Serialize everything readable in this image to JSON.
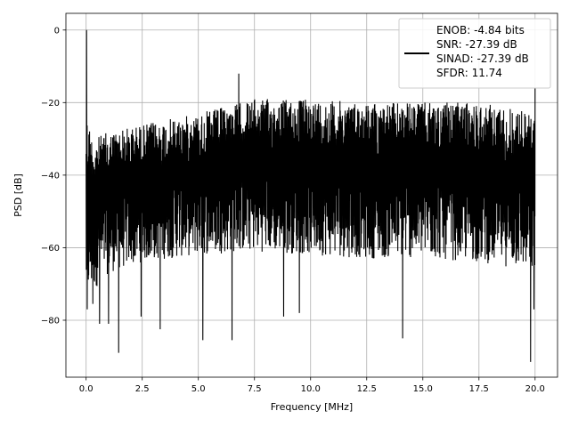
{
  "chart_data": {
    "type": "line",
    "title": "",
    "xlabel": "Frequency [MHz]",
    "ylabel": "PSD [dB]",
    "xlim": [
      -0.9,
      21.0
    ],
    "ylim": [
      -95.7,
      4.6
    ],
    "xticks": [
      0.0,
      2.5,
      5.0,
      7.5,
      10.0,
      12.5,
      15.0,
      17.5,
      20.0
    ],
    "xtick_labels": [
      "0.0",
      "2.5",
      "5.0",
      "7.5",
      "10.0",
      "12.5",
      "15.0",
      "17.5",
      "20.0"
    ],
    "yticks": [
      0,
      -20,
      -40,
      -60,
      -80
    ],
    "ytick_labels": [
      "0",
      "−20",
      "−40",
      "−60",
      "−80"
    ],
    "grid": true,
    "legend_position": "top-right",
    "legend": [
      "ENOB: -4.84 bits",
      "SNR: -27.39 dB",
      "SINAD: -27.39 dB",
      "SFDR: 11.74"
    ],
    "series": [
      {
        "color": "#000000",
        "description": "dense noise floor spectrum from 0 to 20 MHz",
        "upper_envelope": {
          "x": [
            0.0,
            0.3,
            1.0,
            2.5,
            5.0,
            7.5,
            10.0,
            12.5,
            15.0,
            17.5,
            19.5,
            20.0
          ],
          "y": [
            -22,
            -30,
            -28,
            -26,
            -23,
            -19,
            -19,
            -20,
            -20,
            -20,
            -22,
            -24
          ]
        },
        "lower_envelope": {
          "x": [
            0.0,
            0.3,
            1.0,
            2.5,
            5.0,
            7.5,
            10.0,
            12.5,
            15.0,
            17.5,
            19.5,
            20.0
          ],
          "y": [
            -75,
            -72,
            -67,
            -64,
            -62,
            -61,
            -62,
            -63,
            -63,
            -64,
            -66,
            -68
          ]
        },
        "spikes": [
          {
            "x": 0.02,
            "y": 0.0
          },
          {
            "x": 6.8,
            "y": -12.0
          },
          {
            "x": 20.0,
            "y": -16.0
          },
          {
            "x": 0.05,
            "y": -77.0
          },
          {
            "x": 0.3,
            "y": -75.5
          },
          {
            "x": 0.6,
            "y": -81.0
          },
          {
            "x": 1.0,
            "y": -81.0
          },
          {
            "x": 1.45,
            "y": -89.0
          },
          {
            "x": 2.45,
            "y": -79.0
          },
          {
            "x": 3.3,
            "y": -82.5
          },
          {
            "x": 5.2,
            "y": -85.5
          },
          {
            "x": 6.5,
            "y": -85.5
          },
          {
            "x": 8.8,
            "y": -79.0
          },
          {
            "x": 9.5,
            "y": -78.0
          },
          {
            "x": 14.1,
            "y": -85.0
          },
          {
            "x": 19.8,
            "y": -91.5
          },
          {
            "x": 19.95,
            "y": -77.0
          }
        ]
      }
    ]
  }
}
